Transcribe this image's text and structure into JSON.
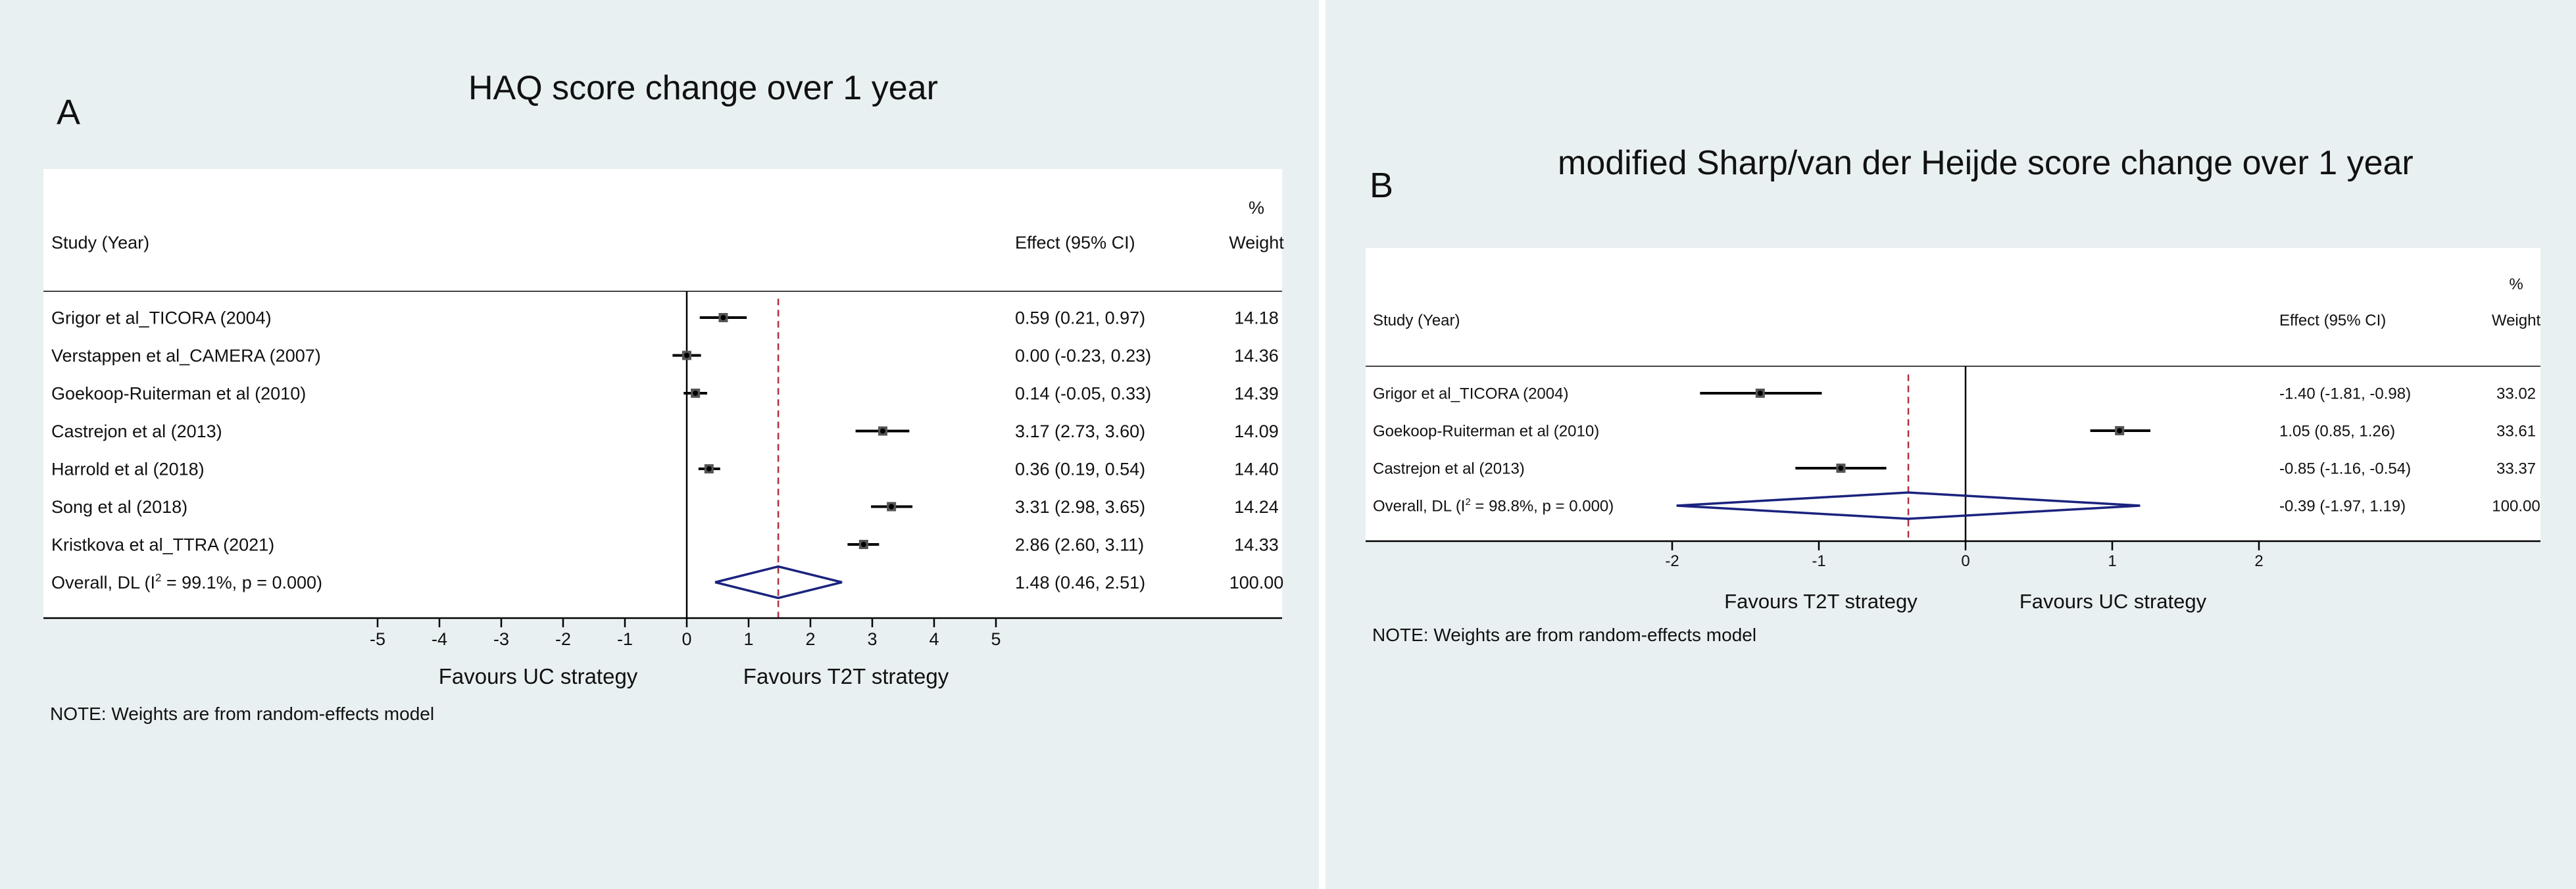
{
  "colors": {
    "background": "#e9f0f2",
    "plot_background": "#ffffff",
    "diamond": "#1a237e",
    "null_line": "#000000",
    "overall_line": "#b03040"
  },
  "chart_data": [
    {
      "type": "forest",
      "panel_label": "A",
      "title": "HAQ score change over 1 year",
      "header": {
        "study": "Study (Year)",
        "effect": "Effect (95% CI)",
        "weight_pct": "%",
        "weight": "Weight"
      },
      "studies": [
        {
          "label": "Grigor et al_TICORA (2004)",
          "effect": 0.59,
          "lower": 0.21,
          "upper": 0.97,
          "effect_text": "0.59 (0.21, 0.97)",
          "weight": "14.18"
        },
        {
          "label": "Verstappen et al_CAMERA (2007)",
          "effect": 0.0,
          "lower": -0.23,
          "upper": 0.23,
          "effect_text": "0.00 (-0.23, 0.23)",
          "weight": "14.36"
        },
        {
          "label": "Goekoop-Ruiterman et al (2010)",
          "effect": 0.14,
          "lower": -0.05,
          "upper": 0.33,
          "effect_text": "0.14 (-0.05, 0.33)",
          "weight": "14.39"
        },
        {
          "label": "Castrejon et al (2013)",
          "effect": 3.17,
          "lower": 2.73,
          "upper": 3.6,
          "effect_text": "3.17 (2.73, 3.60)",
          "weight": "14.09"
        },
        {
          "label": "Harrold et al (2018)",
          "effect": 0.36,
          "lower": 0.19,
          "upper": 0.54,
          "effect_text": "0.36 (0.19, 0.54)",
          "weight": "14.40"
        },
        {
          "label": "Song et al (2018)",
          "effect": 3.31,
          "lower": 2.98,
          "upper": 3.65,
          "effect_text": "3.31 (2.98, 3.65)",
          "weight": "14.24"
        },
        {
          "label": "Kristkova et al_TTRA (2021)",
          "effect": 2.86,
          "lower": 2.6,
          "upper": 3.11,
          "effect_text": "2.86 (2.60, 3.11)",
          "weight": "14.33"
        }
      ],
      "overall": {
        "label_prefix": "Overall, DL (I",
        "label_sup": "2",
        "label_suffix": " = 99.1%, p = 0.000)",
        "effect": 1.48,
        "lower": 0.46,
        "upper": 2.51,
        "effect_text": "1.48 (0.46, 2.51)",
        "weight": "100.00"
      },
      "xlim": [
        -5,
        5
      ],
      "xticks": [
        -5,
        -4,
        -3,
        -2,
        -1,
        0,
        1,
        2,
        3,
        4,
        5
      ],
      "favours_left": "Favours UC strategy",
      "favours_right": "Favours T2T strategy",
      "note": "NOTE: Weights are from random-effects model"
    },
    {
      "type": "forest",
      "panel_label": "B",
      "title": "modified Sharp/van der Heijde score change over 1 year",
      "header": {
        "study": "Study (Year)",
        "effect": "Effect (95% CI)",
        "weight_pct": "%",
        "weight": "Weight"
      },
      "studies": [
        {
          "label": "Grigor et al_TICORA (2004)",
          "effect": -1.4,
          "lower": -1.81,
          "upper": -0.98,
          "effect_text": "-1.40 (-1.81, -0.98)",
          "weight": "33.02"
        },
        {
          "label": "Goekoop-Ruiterman et al (2010)",
          "effect": 1.05,
          "lower": 0.85,
          "upper": 1.26,
          "effect_text": "1.05 (0.85, 1.26)",
          "weight": "33.61"
        },
        {
          "label": "Castrejon et al (2013)",
          "effect": -0.85,
          "lower": -1.16,
          "upper": -0.54,
          "effect_text": "-0.85 (-1.16, -0.54)",
          "weight": "33.37"
        }
      ],
      "overall": {
        "label_prefix": "Overall, DL (I",
        "label_sup": "2",
        "label_suffix": " = 98.8%, p = 0.000)",
        "effect": -0.39,
        "lower": -1.97,
        "upper": 1.19,
        "effect_text": "-0.39 (-1.97, 1.19)",
        "weight": "100.00"
      },
      "xlim": [
        -2,
        2
      ],
      "xticks": [
        -2,
        -1,
        0,
        1,
        2
      ],
      "favours_left": "Favours T2T strategy",
      "favours_right": "Favours UC strategy",
      "note": "NOTE: Weights are from random-effects model"
    }
  ]
}
